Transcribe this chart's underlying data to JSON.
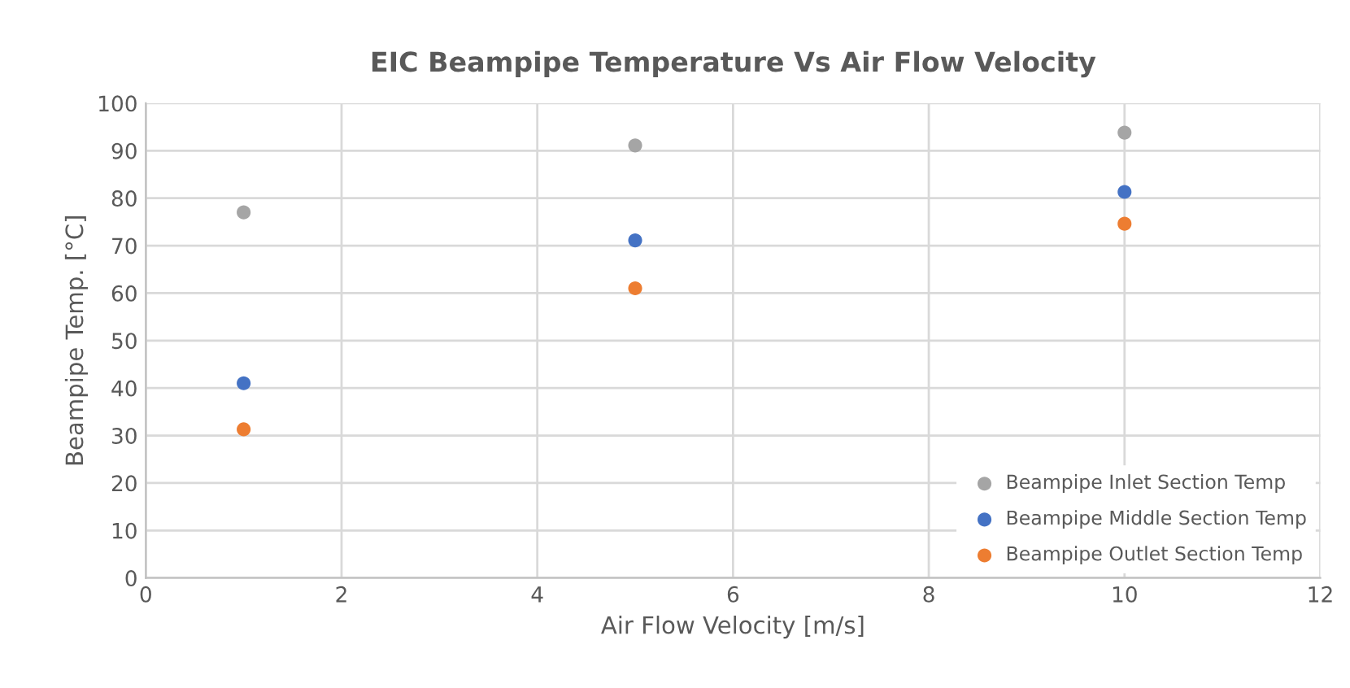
{
  "chart_data": {
    "type": "scatter",
    "title": "EIC Beampipe Temperature Vs Air Flow Velocity",
    "xlabel": "Air Flow Velocity [m/s]",
    "ylabel": "Beampipe Temp. [°C]",
    "x": [
      1,
      5,
      10
    ],
    "series": [
      {
        "name": "Beampipe Inlet Section Temp",
        "color": "#a5a5a5",
        "values": [
          77,
          91.1,
          93.8
        ]
      },
      {
        "name": "Beampipe Middle Section Temp",
        "color": "#4472c4",
        "values": [
          41,
          71.1,
          81.3
        ]
      },
      {
        "name": "Beampipe Outlet Section Temp",
        "color": "#ed7d31",
        "values": [
          31.3,
          61,
          74.6
        ]
      }
    ],
    "xlim": [
      0,
      12
    ],
    "xticks": [
      0,
      2,
      4,
      6,
      8,
      10,
      12
    ],
    "ylim": [
      0,
      100
    ],
    "yticks": [
      0,
      10,
      20,
      30,
      40,
      50,
      60,
      70,
      80,
      90,
      100
    ],
    "grid": true,
    "legend": "lower right",
    "marker": "circle"
  }
}
